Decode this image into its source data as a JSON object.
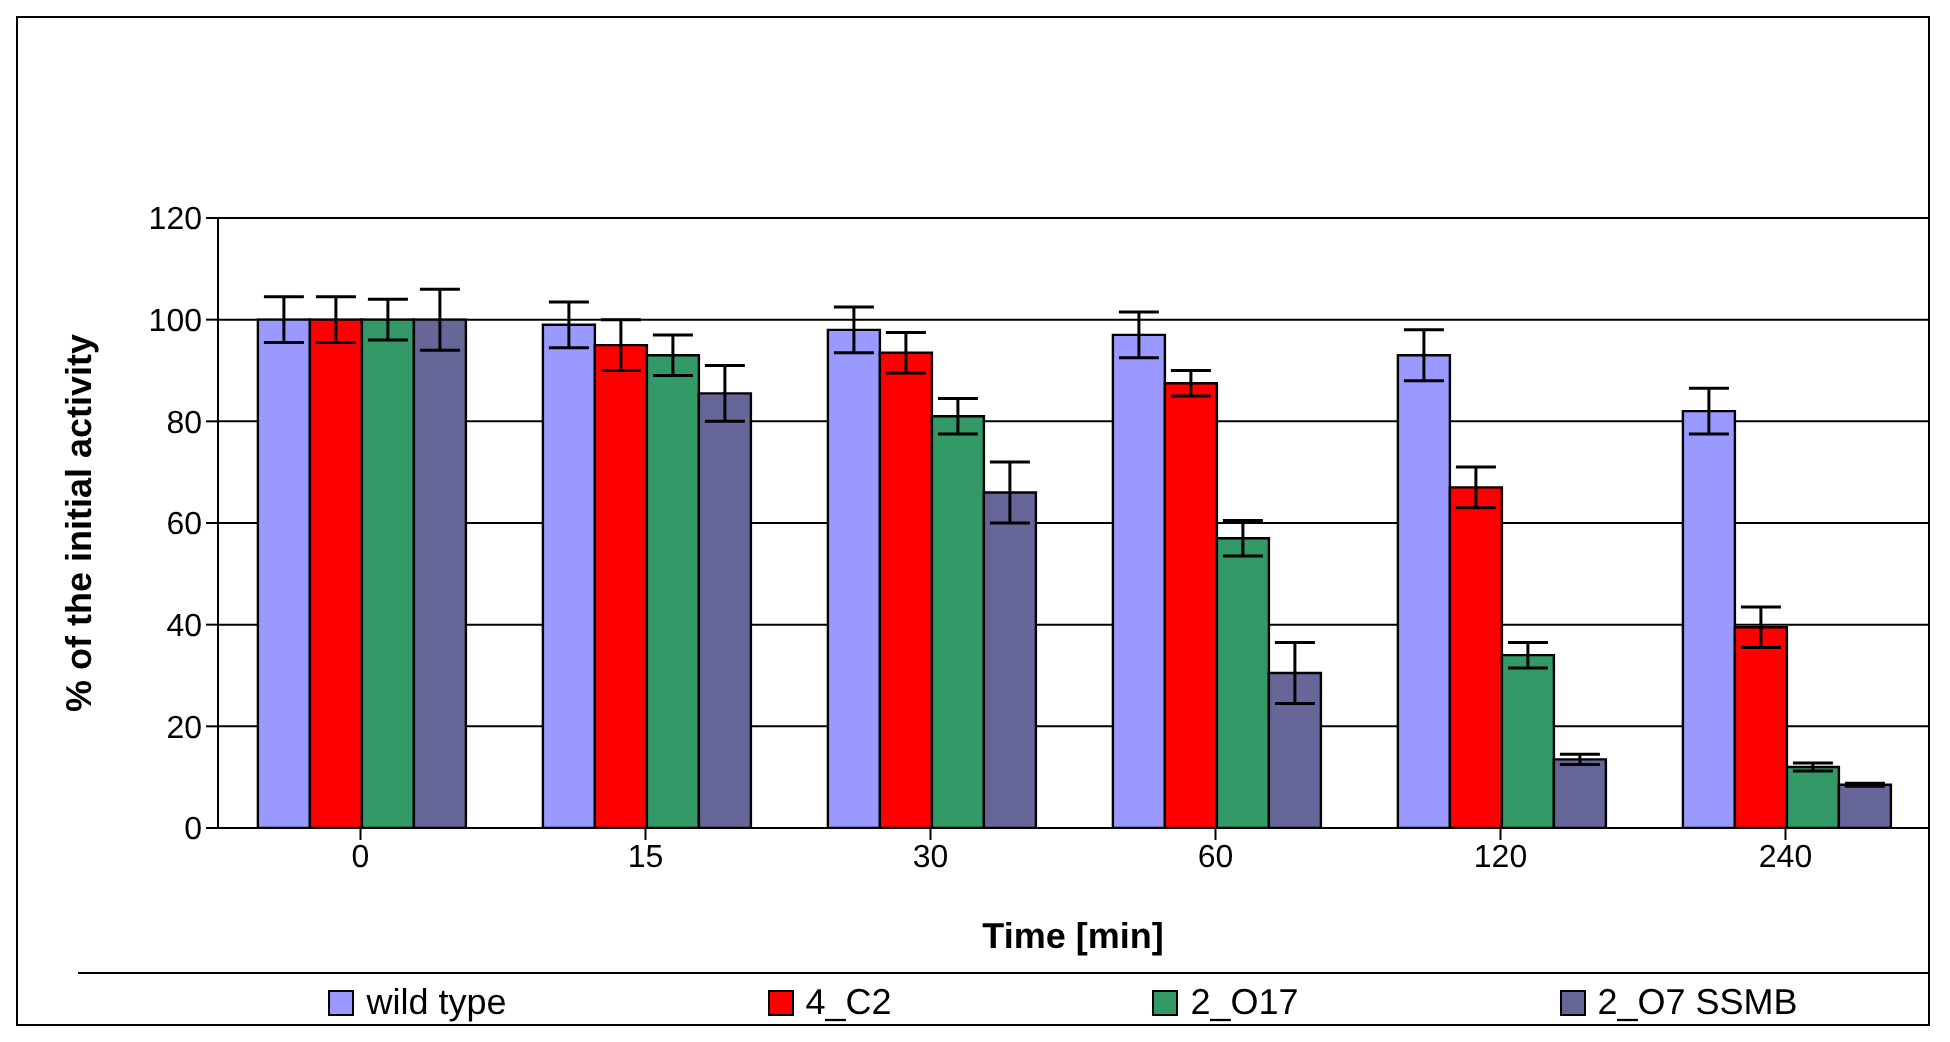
{
  "chart_data": {
    "type": "bar",
    "xlabel": "Time [min]",
    "ylabel": "% of the initial activity",
    "categories": [
      "0",
      "15",
      "30",
      "60",
      "120",
      "240"
    ],
    "series": [
      {
        "name": "wild type",
        "color": "#9999ff",
        "values": [
          100,
          99,
          98,
          97,
          93,
          82
        ],
        "errors": [
          4.5,
          4.5,
          4.5,
          4.5,
          5,
          4.5
        ]
      },
      {
        "name": "4_C2",
        "color": "#ff0000",
        "values": [
          100,
          95,
          93.5,
          87.5,
          67,
          39.5
        ],
        "errors": [
          4.5,
          5,
          4,
          2.5,
          4,
          4
        ]
      },
      {
        "name": "2_O17",
        "color": "#339966",
        "values": [
          100,
          93,
          81,
          57,
          34,
          12
        ],
        "errors": [
          4,
          4,
          3.5,
          3.5,
          2.5,
          0.8
        ]
      },
      {
        "name": "2_O7 SSMB",
        "color": "#666699",
        "values": [
          100,
          85.5,
          66,
          30.5,
          13.5,
          8.5
        ],
        "errors": [
          6,
          5.5,
          6,
          6,
          1,
          0.3
        ]
      }
    ],
    "ylim": [
      0,
      120
    ],
    "yticks": [
      0,
      20,
      40,
      60,
      80,
      100,
      120
    ],
    "grid": "y",
    "legend": "bottom"
  }
}
